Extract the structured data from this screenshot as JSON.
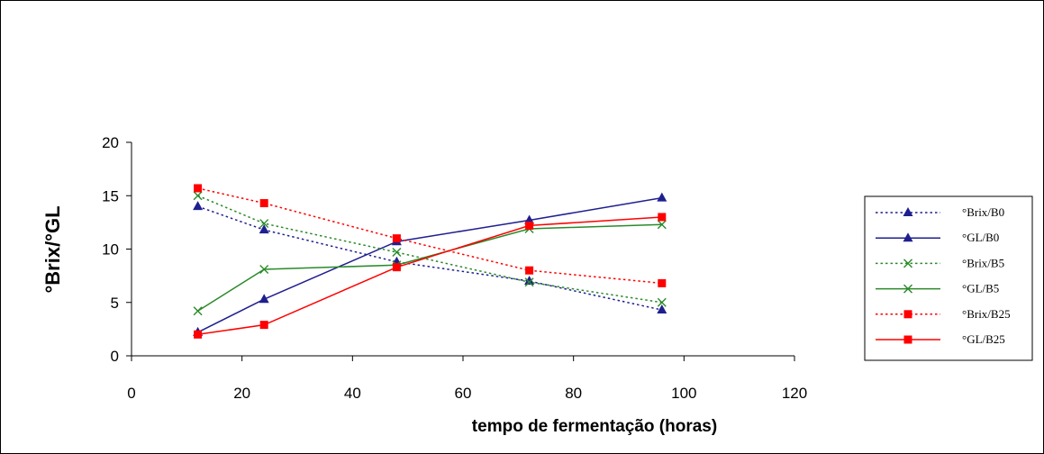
{
  "chart_data": {
    "type": "line",
    "title": "",
    "xlabel": "tempo de fermentação (horas)",
    "ylabel": "°Brix/°GL",
    "xlim": [
      0,
      120
    ],
    "ylim": [
      0,
      20
    ],
    "x_ticks": [
      0,
      20,
      40,
      60,
      80,
      100,
      120
    ],
    "y_ticks": [
      0,
      5,
      10,
      15,
      20
    ],
    "grid": false,
    "legend_position": "right",
    "x": [
      12,
      24,
      48,
      72,
      96
    ],
    "series": [
      {
        "name": "°Brix/B0",
        "values": [
          14.0,
          11.8,
          8.8,
          7.0,
          4.3
        ],
        "color": "#1f1f8f",
        "dash": "dotted",
        "marker": "triangle"
      },
      {
        "name": "°GL/B0",
        "values": [
          2.2,
          5.3,
          10.7,
          12.7,
          14.8
        ],
        "color": "#1f1f8f",
        "dash": "solid",
        "marker": "triangle"
      },
      {
        "name": "°Brix/B5",
        "values": [
          15.0,
          12.4,
          9.7,
          6.9,
          5.0
        ],
        "color": "#2a8a2a",
        "dash": "dotted",
        "marker": "x"
      },
      {
        "name": "°GL/B5",
        "values": [
          4.2,
          8.1,
          8.5,
          11.9,
          12.3
        ],
        "color": "#2a8a2a",
        "dash": "solid",
        "marker": "x"
      },
      {
        "name": "°Brix/B25",
        "values": [
          15.7,
          14.3,
          11.0,
          8.0,
          6.8
        ],
        "color": "#ff0000",
        "dash": "dotted",
        "marker": "square"
      },
      {
        "name": "°GL/B25",
        "values": [
          2.0,
          2.9,
          8.3,
          12.2,
          13.0
        ],
        "color": "#ff0000",
        "dash": "solid",
        "marker": "square"
      }
    ]
  }
}
